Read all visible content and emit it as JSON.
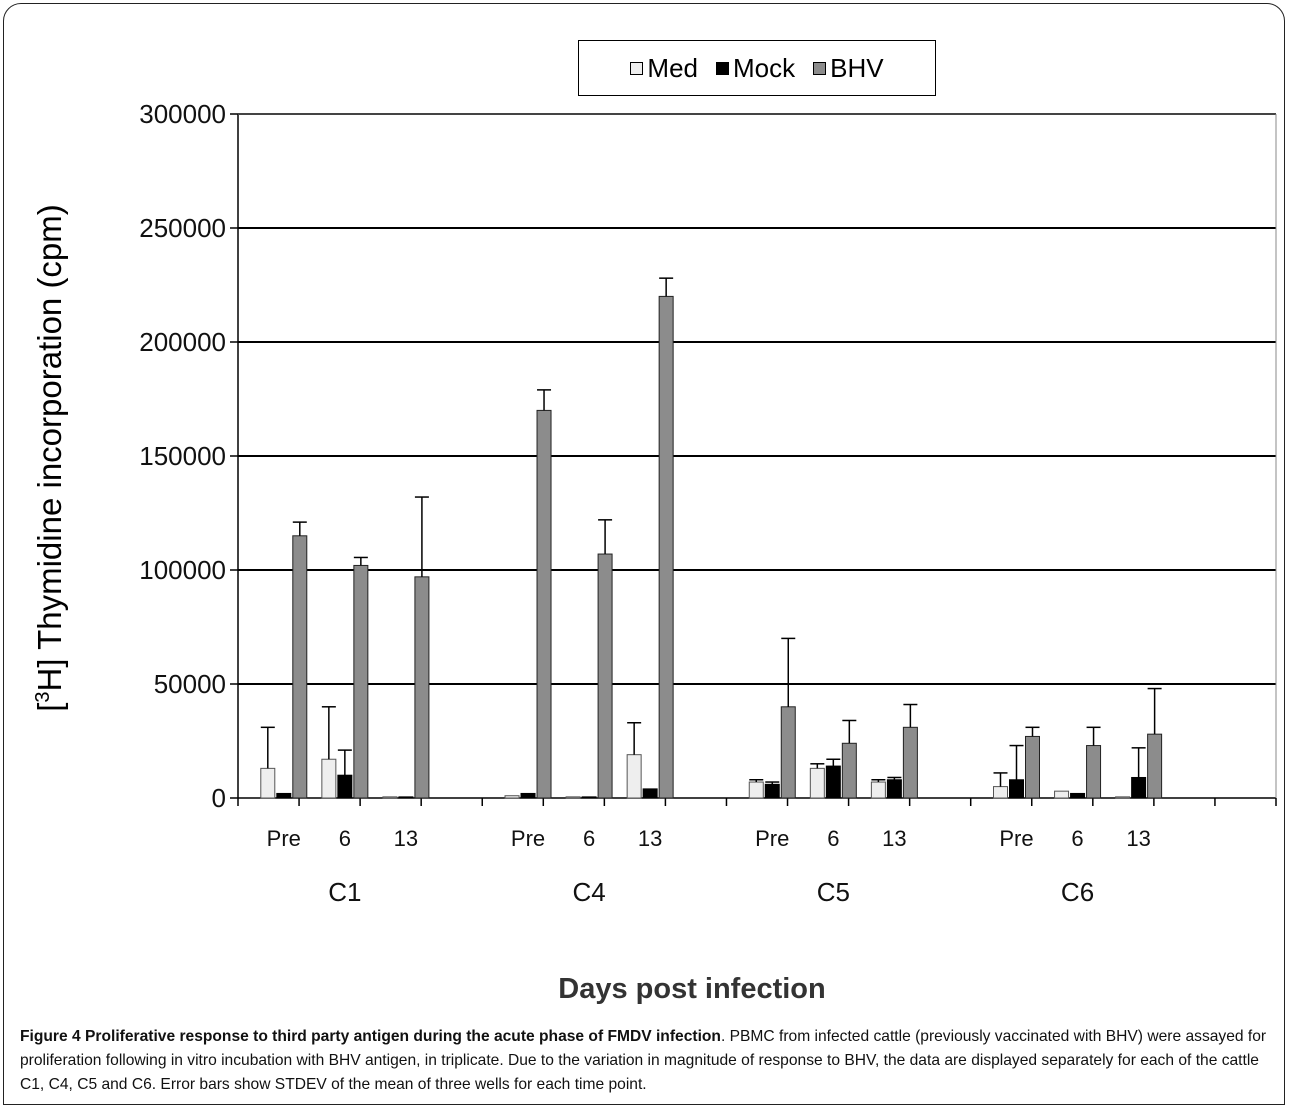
{
  "chart_data": {
    "type": "bar",
    "ylabel_prefix": "[",
    "ylabel_sup": "3",
    "ylabel_rest": "H] Thymidine incorporation (cpm)",
    "xlabel": "Days post infection",
    "ylim": [
      0,
      300000
    ],
    "yticks": [
      0,
      50000,
      100000,
      150000,
      200000,
      250000,
      300000
    ],
    "ytick_labels": [
      "0",
      "50000",
      "100000",
      "150000",
      "200000",
      "250000",
      "300000"
    ],
    "grid": true,
    "legend_position": "top-center",
    "legend": [
      "Med",
      "Mock",
      "BHV"
    ],
    "groups": [
      "C1",
      "C4",
      "C5",
      "C6"
    ],
    "categories": [
      "C1 Pre",
      "C1 6",
      "C1 13",
      "C4 Pre",
      "C4 6",
      "C4 13",
      "C5 Pre",
      "C5 6",
      "C5 13",
      "C6 Pre",
      "C6 6",
      "C6 13"
    ],
    "category_labels": [
      "Pre",
      "6",
      "13",
      "Pre",
      "6",
      "13",
      "Pre",
      "6",
      "13",
      "Pre",
      "6",
      "13"
    ],
    "series": [
      {
        "name": "Med",
        "color": "#eeeeee",
        "values": [
          13000,
          17000,
          500,
          1000,
          500,
          19000,
          7000,
          13000,
          7000,
          5000,
          3000,
          500
        ],
        "errors": [
          18000,
          23000,
          0,
          0,
          0,
          14000,
          1000,
          2000,
          1000,
          6000,
          0,
          0
        ]
      },
      {
        "name": "Mock",
        "color": "#000000",
        "values": [
          2000,
          10000,
          500,
          2000,
          500,
          4000,
          6000,
          14000,
          8000,
          8000,
          2000,
          9000
        ],
        "errors": [
          0,
          11000,
          0,
          0,
          0,
          0,
          1000,
          3000,
          1000,
          15000,
          0,
          13000
        ]
      },
      {
        "name": "BHV",
        "color": "#8c8c8c",
        "values": [
          115000,
          102000,
          97000,
          170000,
          107000,
          220000,
          40000,
          24000,
          31000,
          27000,
          23000,
          28000
        ],
        "errors": [
          6000,
          3500,
          35000,
          9000,
          15000,
          8000,
          30000,
          10000,
          10000,
          4000,
          8000,
          20000
        ]
      }
    ]
  },
  "caption": {
    "title": "Figure 4 Proliferative response to third party antigen during the acute phase of FMDV infection",
    "body": ". PBMC from infected cattle (previously vaccinated with BHV) were assayed for proliferation following in vitro incubation with BHV antigen, in triplicate. Due to the variation in magnitude of response to BHV, the data are displayed separately for each of the cattle C1, C4, C5 and C6. Error bars show STDEV of the mean of three wells for each time point."
  }
}
